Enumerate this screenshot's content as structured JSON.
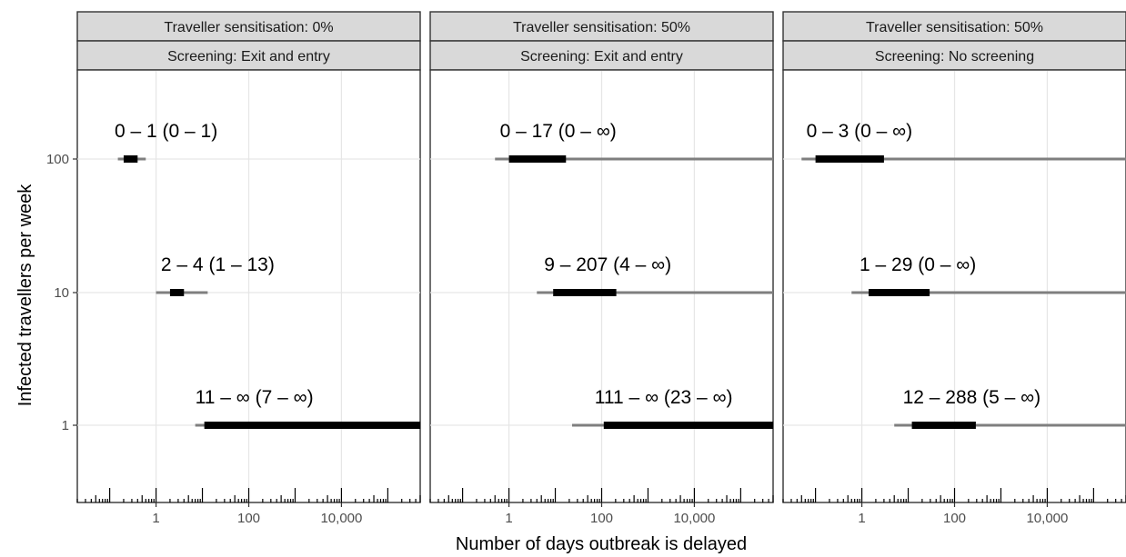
{
  "chart_data": {
    "type": "interval",
    "xlabel": "Number of days outbreak is delayed",
    "ylabel": "Infected travellers per week",
    "x_scale": "log10",
    "xlim": [
      0.02,
      500000
    ],
    "x_ticks": [
      {
        "value": 1,
        "label": "1"
      },
      {
        "value": 100,
        "label": "100"
      },
      {
        "value": 10000,
        "label": "10,000"
      }
    ],
    "y_categories": [
      "100",
      "10",
      "1"
    ],
    "grid": true,
    "panels": [
      {
        "strip_top": "Traveller sensitisation: 0%",
        "strip_bottom": "Screening: Exit and entry",
        "rows": [
          {
            "y": "100",
            "label": "0 – 1 (0 – 1)",
            "inner": [
              0.2,
              0.4
            ],
            "outer": [
              0.15,
              0.6
            ]
          },
          {
            "y": "10",
            "label": "2 – 4 (1 – 13)",
            "inner": [
              2,
              4
            ],
            "outer": [
              1,
              13
            ]
          },
          {
            "y": "1",
            "label": "11 – ∞ (7 – ∞)",
            "inner": [
              11,
              500000
            ],
            "outer": [
              7,
              500000
            ]
          }
        ]
      },
      {
        "strip_top": "Traveller sensitisation: 50%",
        "strip_bottom": "Screening: Exit and entry",
        "rows": [
          {
            "y": "100",
            "label": "0 – 17 (0 – ∞)",
            "inner": [
              1,
              17
            ],
            "outer": [
              0.5,
              500000
            ]
          },
          {
            "y": "10",
            "label": "9 – 207 (4 – ∞)",
            "inner": [
              9,
              207
            ],
            "outer": [
              4,
              500000
            ]
          },
          {
            "y": "1",
            "label": "111 – ∞ (23 – ∞)",
            "inner": [
              111,
              500000
            ],
            "outer": [
              23,
              500000
            ]
          }
        ]
      },
      {
        "strip_top": "Traveller sensitisation: 50%",
        "strip_bottom": "Screening: No screening",
        "rows": [
          {
            "y": "100",
            "label": "0 – 3 (0 – ∞)",
            "inner": [
              0.1,
              3
            ],
            "outer": [
              0.05,
              500000
            ]
          },
          {
            "y": "10",
            "label": "1 – 29 (0 – ∞)",
            "inner": [
              1.4,
              29
            ],
            "outer": [
              0.6,
              500000
            ]
          },
          {
            "y": "1",
            "label": "12 – 288 (5 – ∞)",
            "inner": [
              12,
              288
            ],
            "outer": [
              5,
              500000
            ]
          }
        ]
      }
    ]
  }
}
